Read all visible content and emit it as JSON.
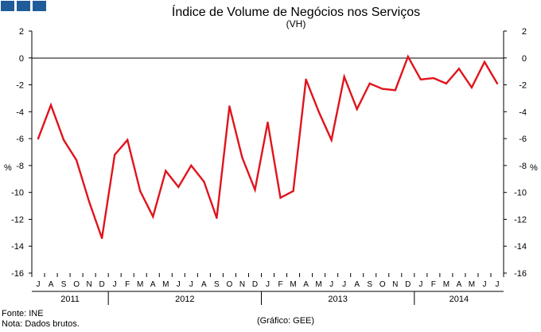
{
  "brand": {
    "colors": [
      "#1f5c99",
      "#1f5c99",
      "#1f5c99"
    ]
  },
  "chart_data": {
    "type": "line",
    "title": "Índice de Volume de Negócios nos Serviços",
    "subtitle": "(VH)",
    "ylabel_left": "%",
    "ylabel_right": "%",
    "ylim": [
      -16,
      2
    ],
    "yticks": [
      2,
      0,
      -2,
      -4,
      -6,
      -8,
      -10,
      -12,
      -14,
      -16
    ],
    "grid": false,
    "line_color": "#e0141c",
    "months": [
      "J",
      "A",
      "S",
      "O",
      "N",
      "D",
      "J",
      "F",
      "M",
      "A",
      "M",
      "J",
      "J",
      "A",
      "S",
      "O",
      "N",
      "D",
      "J",
      "F",
      "M",
      "A",
      "M",
      "J",
      "J",
      "A",
      "S",
      "O",
      "N",
      "D",
      "J",
      "F",
      "M",
      "A",
      "M",
      "J",
      "J"
    ],
    "years": [
      {
        "label": "2011",
        "start": 0,
        "end": 6
      },
      {
        "label": "2012",
        "start": 6,
        "end": 18
      },
      {
        "label": "2013",
        "start": 18,
        "end": 30
      },
      {
        "label": "2014",
        "start": 30,
        "end": 37
      }
    ],
    "series": [
      {
        "name": "Índice de Volume de Negócios nos Serviços (VH)",
        "values": [
          -6.0,
          -3.5,
          -6.1,
          -7.6,
          -10.7,
          -13.4,
          -7.2,
          -6.1,
          -9.9,
          -11.8,
          -8.4,
          -9.6,
          -8.0,
          -9.2,
          -11.9,
          -3.6,
          -7.4,
          -9.8,
          -4.8,
          -10.4,
          -9.9,
          -1.6,
          -4.0,
          -6.1,
          -1.4,
          -3.8,
          -1.9,
          -2.3,
          -2.4,
          0.1,
          -1.6,
          -1.5,
          -1.9,
          -0.8,
          -2.2,
          -0.3,
          -1.9
        ]
      }
    ]
  },
  "footer": {
    "source": "Fonte: INE",
    "note": "Nota: Dados brutos.",
    "credit": "(Gráfico: GEE)"
  }
}
